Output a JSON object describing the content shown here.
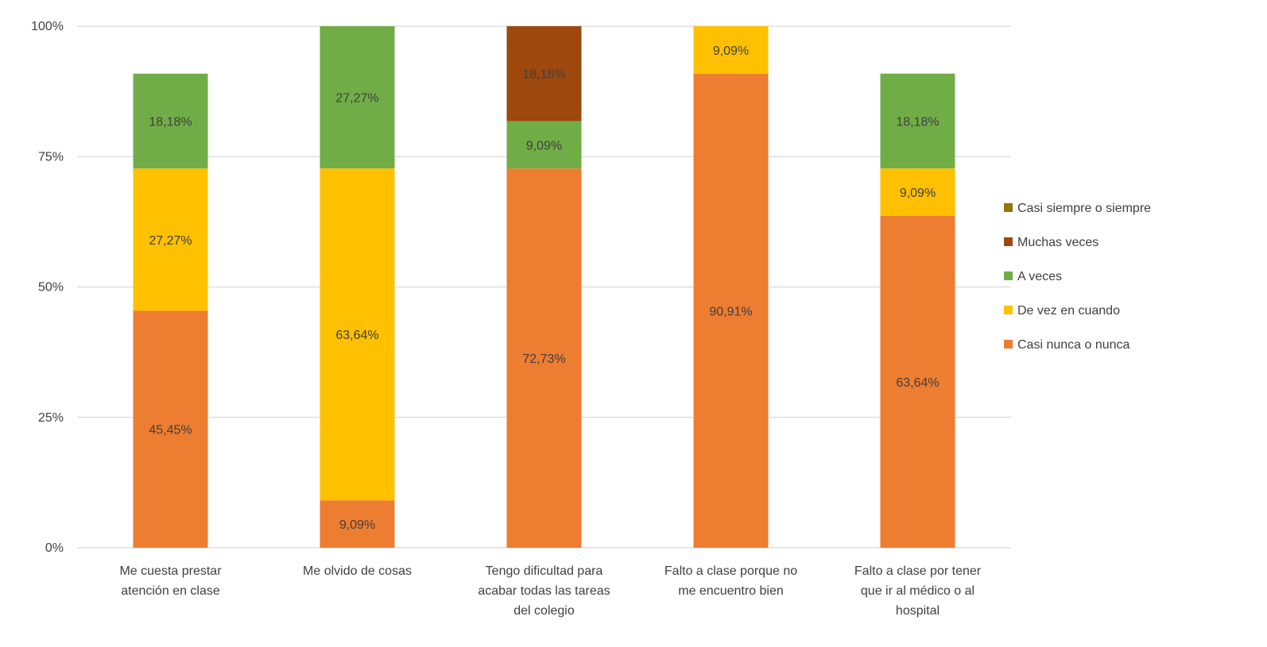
{
  "chart_data": {
    "type": "bar",
    "stacked": true,
    "percent_stacked": true,
    "title": "",
    "xlabel": "",
    "ylabel": "",
    "ylim": [
      0,
      100
    ],
    "y_ticks": [
      "0%",
      "25%",
      "50%",
      "75%",
      "100%"
    ],
    "y_tick_values": [
      0,
      25,
      50,
      75,
      100
    ],
    "grid": true,
    "legend_position": "right",
    "categories": [
      [
        "Me cuesta prestar",
        "atención en clase"
      ],
      [
        "Me olvido de cosas"
      ],
      [
        "Tengo dificultad para",
        "acabar todas las tareas",
        "del colegio"
      ],
      [
        "Falto a clase porque no",
        "me encuentro bien"
      ],
      [
        "Falto a clase por tener",
        "que ir al médico o al",
        "hospital"
      ]
    ],
    "series": [
      {
        "name": "Casi nunca o nunca",
        "color": "#ED7D31",
        "values": [
          45.45,
          9.09,
          72.73,
          90.91,
          63.64
        ],
        "labels": [
          "45,45%",
          "9,09%",
          "72,73%",
          "90,91%",
          "63,64%"
        ]
      },
      {
        "name": "De vez en cuando",
        "color": "#FFC000",
        "values": [
          27.27,
          63.64,
          0,
          9.09,
          9.09
        ],
        "labels": [
          "27,27%",
          "63,64%",
          "",
          "9,09%",
          "9,09%"
        ]
      },
      {
        "name": "A veces",
        "color": "#70AD47",
        "values": [
          18.18,
          27.27,
          9.09,
          0,
          18.18
        ],
        "labels": [
          "18,18%",
          "27,27%",
          "9,09%",
          "",
          "18,18%"
        ]
      },
      {
        "name": "Muchas veces",
        "color": "#9E480E",
        "values": [
          0,
          0,
          18.18,
          0,
          0
        ],
        "labels": [
          "",
          "",
          "18,18%",
          "",
          ""
        ]
      },
      {
        "name": "Casi siempre o siempre",
        "color": "#997300",
        "values": [
          0,
          0,
          0,
          0,
          0
        ],
        "labels": [
          "",
          "",
          "",
          "",
          ""
        ]
      }
    ],
    "legend_order": [
      "Casi siempre o siempre",
      "Muchas veces",
      "A veces",
      "De vez en cuando",
      "Casi nunca o nunca"
    ]
  }
}
